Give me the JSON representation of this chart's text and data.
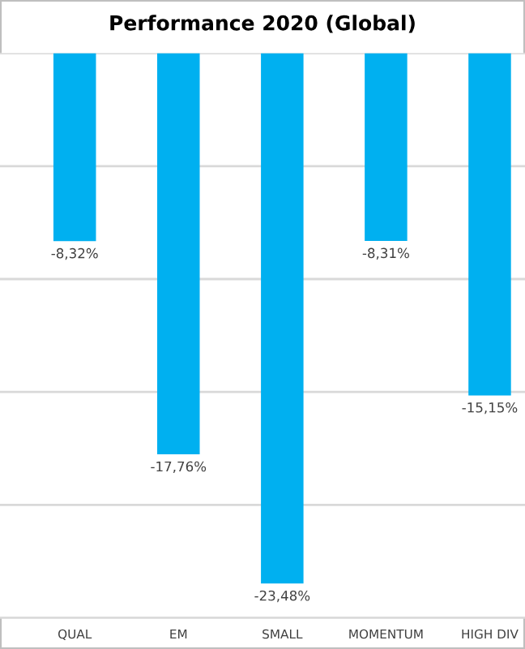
{
  "chart_data": {
    "type": "bar",
    "title": "Performance 2020 (Global)",
    "categories": [
      "QUAL",
      "EM",
      "SMALL",
      "MOMENTUM",
      "HIGH DIV"
    ],
    "values": [
      -8.32,
      -17.76,
      -23.48,
      -8.31,
      -15.15
    ],
    "value_labels": [
      "-8,32%",
      "-17,76%",
      "-23,48%",
      "-8,31%",
      "-15,15%"
    ],
    "color": "#00b0f0",
    "ylim": [
      -25,
      0
    ],
    "yticks": [
      {
        "value": -25,
        "label": null
      },
      {
        "value": -20,
        "label": null
      },
      {
        "value": -15,
        "label": null
      },
      {
        "value": -10,
        "label": null
      },
      {
        "value": -5,
        "label": null
      },
      {
        "value": 0,
        "label": null
      }
    ],
    "grid": "y",
    "tick_labels": "x"
  }
}
